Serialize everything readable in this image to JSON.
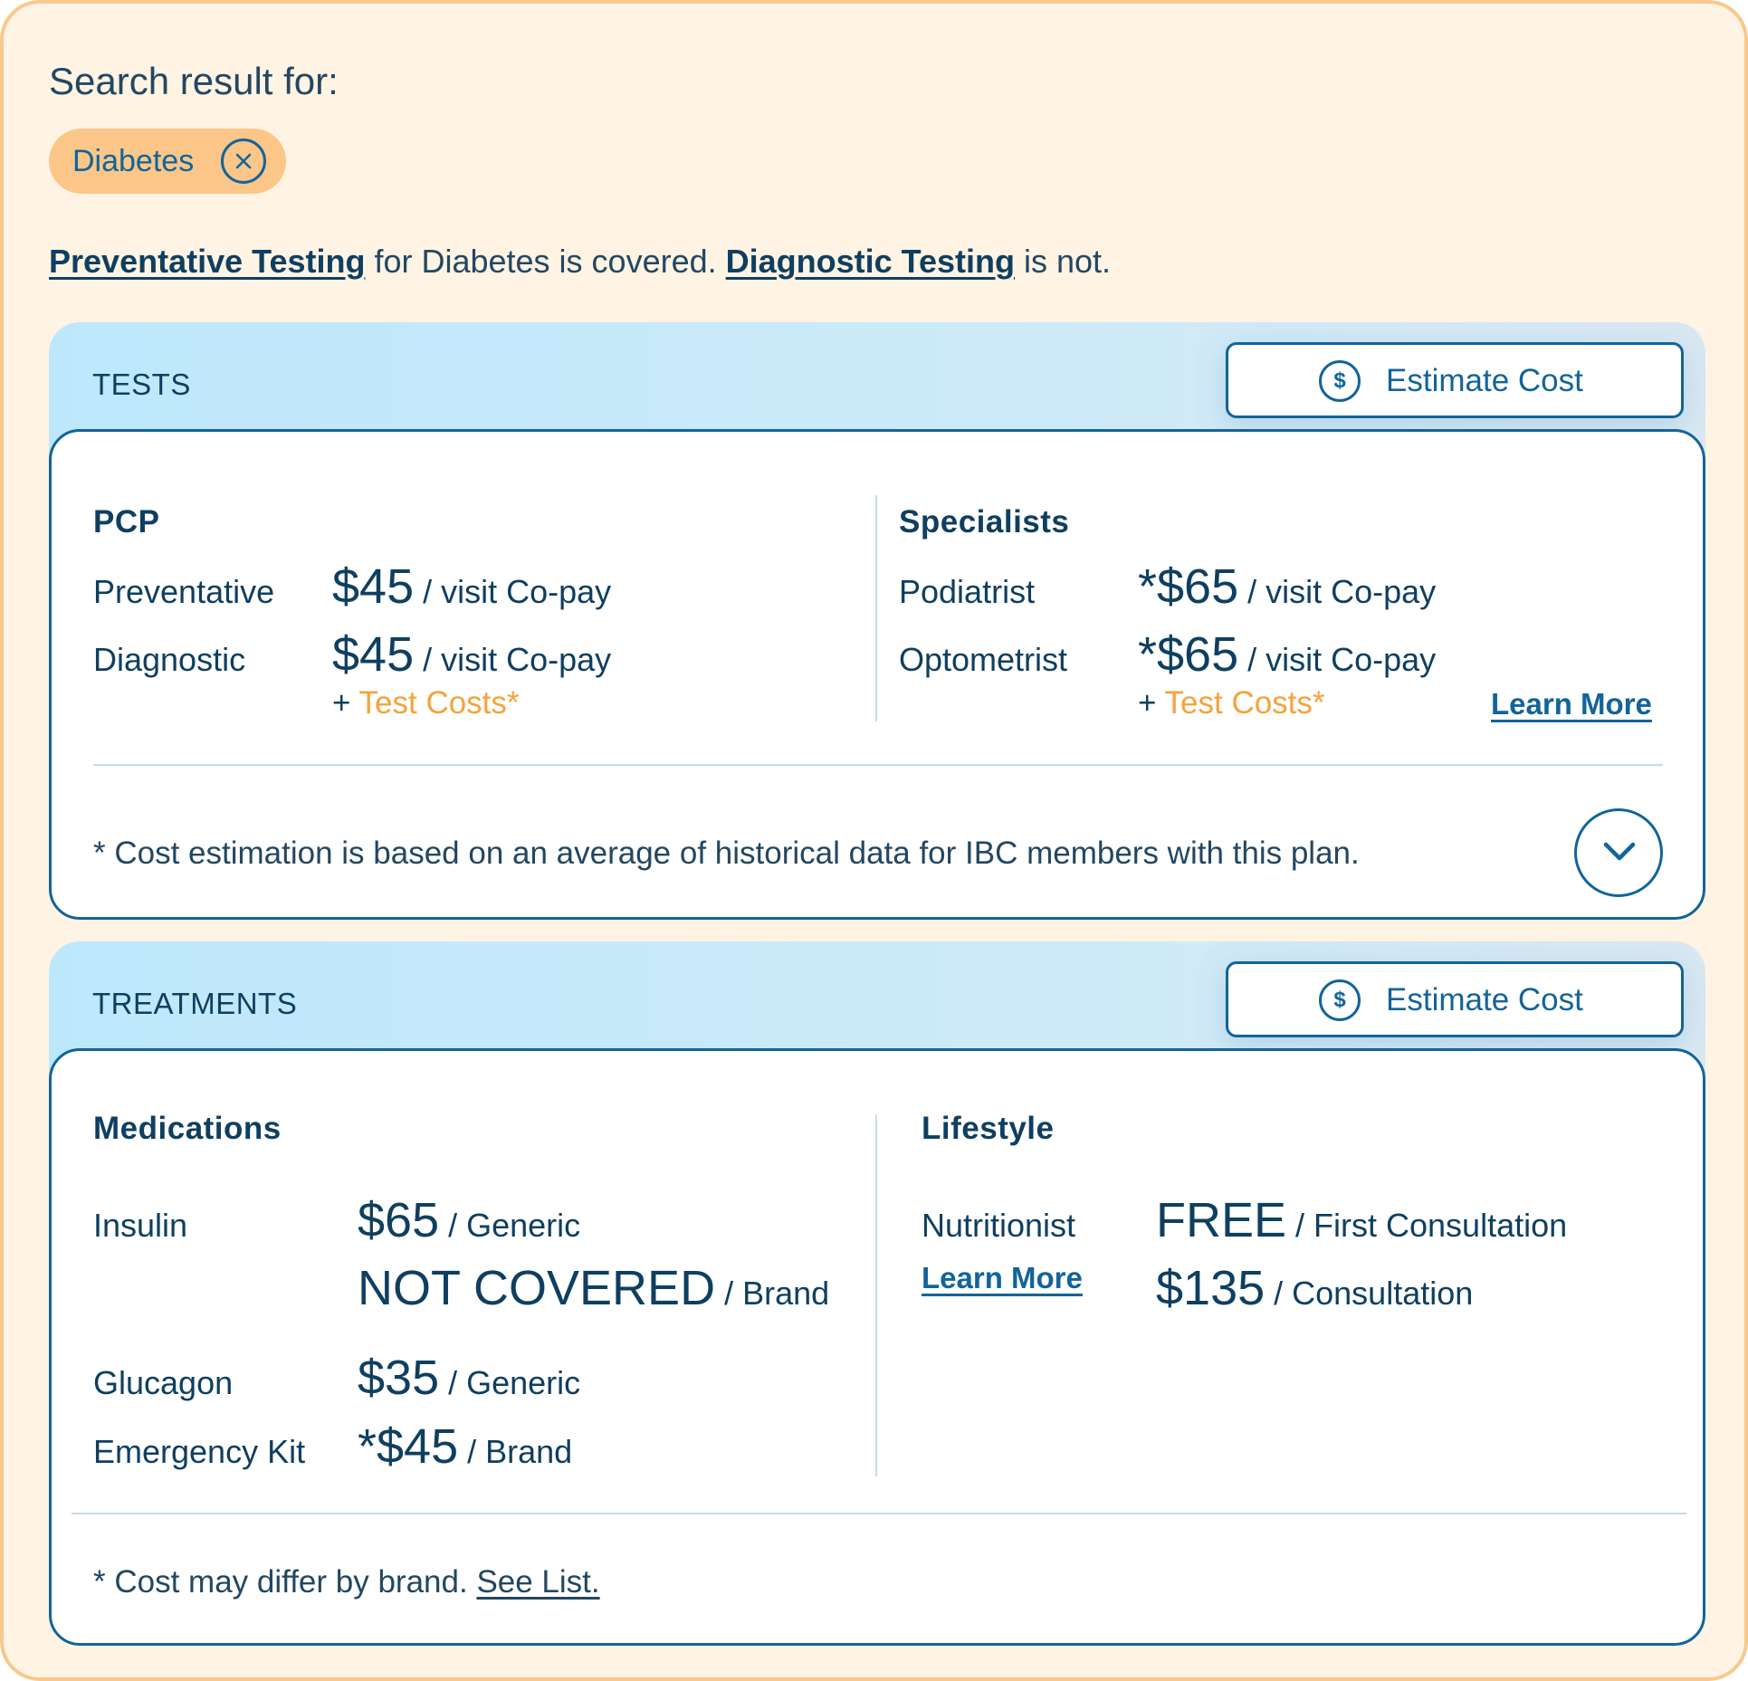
{
  "search": {
    "label": "Search result for:",
    "chip_label": "Diabetes"
  },
  "coverage": {
    "link1": "Preventative Testing",
    "text1": " for Diabetes is covered. ",
    "link2": "Diagnostic Testing",
    "text2": " is not."
  },
  "tests": {
    "title": "TESTS",
    "estimate_label": "Estimate Cost",
    "estimate_icon": "$",
    "pcp": {
      "title": "PCP",
      "rows": [
        {
          "label": "Preventative",
          "amount": "$45",
          "unit": "/ visit Co-pay"
        },
        {
          "label": "Diagnostic",
          "amount": "$45",
          "unit": "/ visit Co-pay"
        }
      ],
      "extra_prefix": "+ ",
      "extra_text": "Test Costs*"
    },
    "specialists": {
      "title": "Specialists",
      "rows": [
        {
          "label": "Podiatrist",
          "amount": "*$65",
          "unit": "/ visit Co-pay"
        },
        {
          "label": "Optometrist",
          "amount": "*$65",
          "unit": "/ visit Co-pay"
        }
      ],
      "extra_prefix": "+ ",
      "extra_text": "Test Costs*",
      "learn_more": "Learn More"
    },
    "footnote": "* Cost estimation is based on an average of historical data for IBC members with this plan."
  },
  "treatments": {
    "title": "TREATMENTS",
    "estimate_label": "Estimate Cost",
    "estimate_icon": "$",
    "medications": {
      "title": "Medications",
      "insulin_label": "Insulin",
      "insulin_generic_amount": "$65",
      "insulin_generic_unit": "/ Generic",
      "insulin_brand_amount": "NOT COVERED",
      "insulin_brand_unit": "/ Brand",
      "glucagon_label": "Glucagon",
      "glucagon_amount": "$35",
      "glucagon_unit": "/ Generic",
      "kit_label": "Emergency Kit",
      "kit_amount": "*$45",
      "kit_unit": "/ Brand"
    },
    "lifestyle": {
      "title": "Lifestyle",
      "nutritionist_label": "Nutritionist",
      "learn_more": "Learn More",
      "first_amount": "FREE",
      "first_unit": "/ First Consultation",
      "consult_amount": "$135",
      "consult_unit": "/ Consultation"
    },
    "footnote_text": "* Cost may differ by brand. ",
    "footnote_link": "See List."
  },
  "colors": {
    "primary": "#12649a",
    "navy": "#0f3f60",
    "accent_orange": "#f5a33a",
    "background": "#fff3e4",
    "chip": "#fbc688"
  },
  "icons": {
    "chip_close": "close-circle-icon",
    "estimate": "dollar-circle-icon",
    "expand": "chevron-down-icon"
  }
}
